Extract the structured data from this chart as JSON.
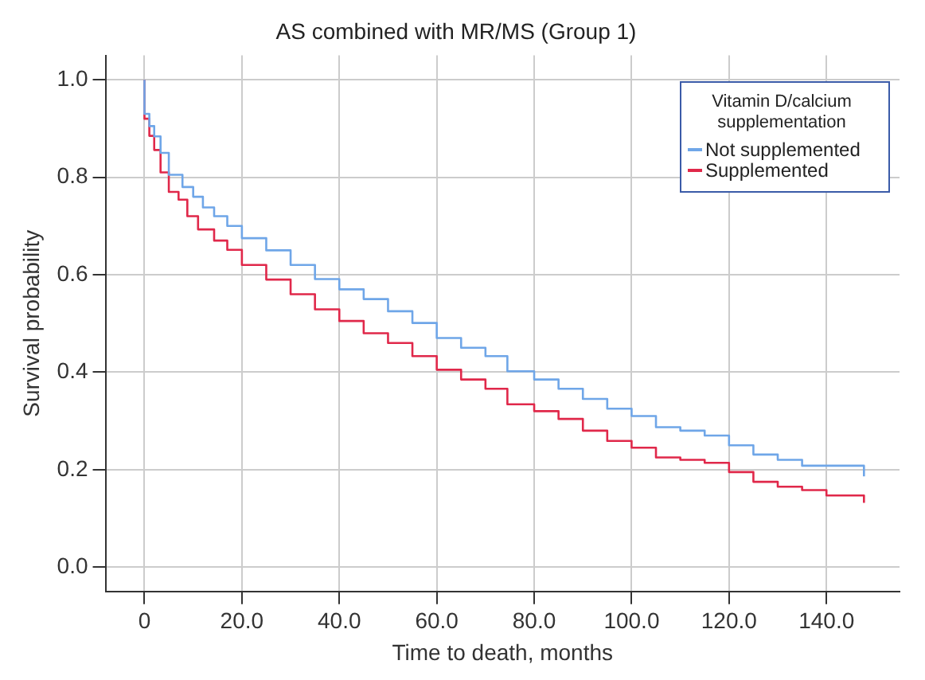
{
  "chart_data": {
    "type": "step",
    "title": "AS combined with MR/MS (Group 1)",
    "xlabel": "Time to death, months",
    "ylabel": "Survival probability",
    "legend_title": "Vitamin D/calcium supplementation",
    "legend": "top right",
    "grid": true,
    "xlim": [
      -8,
      155
    ],
    "ylim": [
      -0.05,
      1.05
    ],
    "xticks": [
      0,
      {
        "value": 20,
        "label": "20.0"
      },
      {
        "value": 40,
        "label": "40.0"
      },
      {
        "value": 60,
        "label": "60.0"
      },
      {
        "value": 80,
        "label": "80.0"
      },
      {
        "value": 100,
        "label": "100.0"
      },
      {
        "value": 120,
        "label": "120.0"
      },
      {
        "value": 140,
        "label": "140.0"
      }
    ],
    "yticks": [
      {
        "value": 0,
        "label": "0.0"
      },
      {
        "value": 0.2,
        "label": "0.2"
      },
      {
        "value": 0.4,
        "label": "0.4"
      },
      {
        "value": 0.6,
        "label": "0.6"
      },
      {
        "value": 0.8,
        "label": "0.8"
      },
      {
        "value": 1,
        "label": "1.0"
      }
    ],
    "series": [
      {
        "name": "Not supplemented",
        "color": "#6fa6e8",
        "x": [
          0,
          1,
          2,
          3.3,
          5,
          7.8,
          10,
          12,
          14.3,
          17,
          20,
          25,
          30,
          35,
          40,
          45,
          50,
          55,
          60,
          65,
          70,
          74.5,
          80,
          85,
          90,
          95,
          100,
          105,
          110,
          115,
          120,
          125,
          130,
          135,
          140,
          147.7,
          147.7
        ],
        "values": [
          1,
          0.93,
          0.905,
          0.884,
          0.85,
          0.805,
          0.78,
          0.76,
          0.738,
          0.72,
          0.7,
          0.675,
          0.65,
          0.62,
          0.591,
          0.57,
          0.55,
          0.525,
          0.501,
          0.47,
          0.45,
          0.433,
          0.402,
          0.385,
          0.366,
          0.345,
          0.325,
          0.31,
          0.287,
          0.28,
          0.27,
          0.25,
          0.231,
          0.22,
          0.208,
          0.208,
          0.186
        ]
      },
      {
        "name": "Supplemented",
        "color": "#e0284a",
        "x": [
          0,
          1,
          2,
          3.3,
          5,
          7,
          8.8,
          11,
          14.3,
          17,
          20,
          25,
          30,
          35,
          40,
          45,
          50,
          55,
          60,
          65,
          70,
          74.5,
          80,
          85,
          90,
          95,
          100,
          105,
          110,
          115,
          120,
          125,
          130,
          135,
          140,
          147.7,
          147.7
        ],
        "values": [
          1,
          0.92,
          0.885,
          0.856,
          0.81,
          0.77,
          0.754,
          0.72,
          0.693,
          0.67,
          0.651,
          0.62,
          0.59,
          0.56,
          0.529,
          0.505,
          0.48,
          0.46,
          0.433,
          0.405,
          0.385,
          0.366,
          0.334,
          0.32,
          0.304,
          0.28,
          0.259,
          0.245,
          0.225,
          0.22,
          0.214,
          0.195,
          0.175,
          0.165,
          0.158,
          0.147,
          0.132
        ]
      }
    ]
  }
}
